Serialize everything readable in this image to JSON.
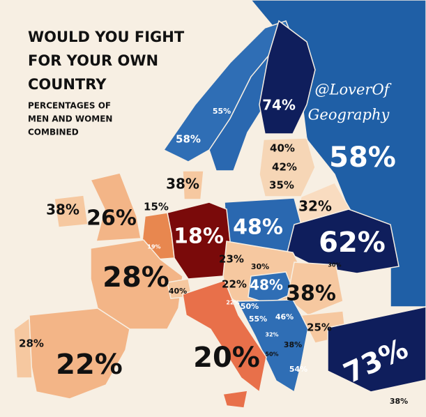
{
  "header": {
    "title_lines": [
      "WOULD YOU FIGHT",
      "FOR YOUR OWN",
      "COUNTRY"
    ],
    "subtitle_lines": [
      "PERCENTAGES OF",
      "MEN AND WOMEN",
      "COMBINED"
    ]
  },
  "credit": [
    "@LoverOf",
    "Geography"
  ],
  "labels": [
    "74%",
    "55%",
    "58%",
    "58%",
    "40%",
    "42%",
    "35%",
    "38%",
    "32%",
    "38%",
    "26%",
    "15%",
    "48%",
    "18%",
    "62%",
    "19%",
    "23%",
    "30%",
    "30%",
    "28%",
    "40%",
    "22%",
    "48%",
    "38%",
    "22%",
    "50%",
    "55%",
    "46%",
    "25%",
    "32%",
    "38%",
    "50%",
    "20%",
    "28%",
    "22%",
    "54%",
    "73%",
    "38%"
  ]
}
